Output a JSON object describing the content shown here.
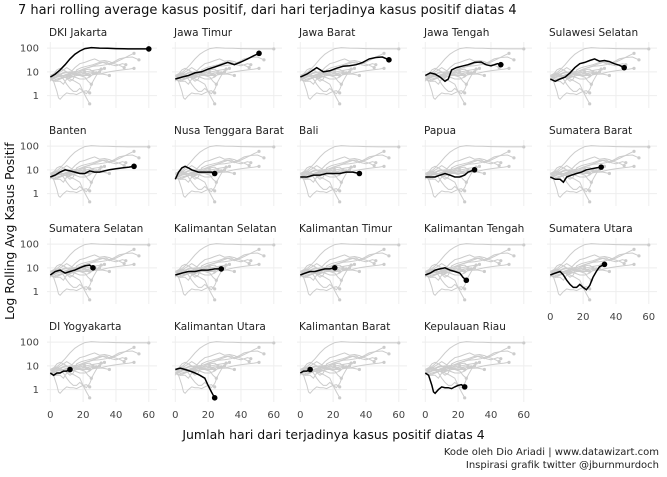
{
  "title": "7 hari rolling average kasus positif, dari hari terjadinya kasus positif diatas 4",
  "caption_line1": "Kode oleh Dio Ariadi | www.datawizart.com",
  "caption_line2": "Inspirasi grafik twitter @jburnmurdoch",
  "chart_data": {
    "type": "line",
    "xlabel": "Jumlah hari dari terjadinya kasus positif diatas 4",
    "ylabel": "Log Rolling Avg Kasus Positif",
    "y_scale": "log10",
    "xlim": [
      -2,
      65
    ],
    "ylim": [
      0.3,
      180
    ],
    "x_ticks": [
      0,
      20,
      40,
      60
    ],
    "y_ticks": [
      1,
      10,
      100
    ],
    "y_tick_labels": [
      "1",
      "10",
      "100"
    ],
    "grid": true,
    "highlight_color": "#000000",
    "background_color": "#cccccc",
    "series": [
      {
        "name": "DKI Jakarta",
        "points": [
          [
            0,
            6
          ],
          [
            3,
            8
          ],
          [
            6,
            12
          ],
          [
            9,
            20
          ],
          [
            12,
            35
          ],
          [
            15,
            55
          ],
          [
            18,
            75
          ],
          [
            21,
            95
          ],
          [
            25,
            105
          ],
          [
            30,
            100
          ],
          [
            35,
            98
          ],
          [
            40,
            95
          ],
          [
            45,
            93
          ],
          [
            50,
            92
          ],
          [
            55,
            92
          ],
          [
            60,
            92
          ]
        ]
      },
      {
        "name": "Jawa Timur",
        "points": [
          [
            0,
            5
          ],
          [
            4,
            6
          ],
          [
            8,
            7
          ],
          [
            12,
            9
          ],
          [
            16,
            10
          ],
          [
            20,
            13
          ],
          [
            24,
            16
          ],
          [
            28,
            20
          ],
          [
            32,
            25
          ],
          [
            36,
            20
          ],
          [
            40,
            26
          ],
          [
            44,
            35
          ],
          [
            48,
            48
          ],
          [
            51,
            60
          ]
        ]
      },
      {
        "name": "Jawa Barat",
        "points": [
          [
            0,
            6
          ],
          [
            4,
            8
          ],
          [
            8,
            12
          ],
          [
            10,
            15
          ],
          [
            14,
            10
          ],
          [
            18,
            11
          ],
          [
            22,
            14
          ],
          [
            26,
            17
          ],
          [
            30,
            18
          ],
          [
            34,
            20
          ],
          [
            38,
            25
          ],
          [
            42,
            35
          ],
          [
            46,
            40
          ],
          [
            50,
            42
          ],
          [
            54,
            32
          ]
        ]
      },
      {
        "name": "Jawa Tengah",
        "points": [
          [
            0,
            7
          ],
          [
            3,
            9
          ],
          [
            6,
            8
          ],
          [
            9,
            6
          ],
          [
            12,
            4
          ],
          [
            14,
            5
          ],
          [
            16,
            12
          ],
          [
            19,
            15
          ],
          [
            22,
            17
          ],
          [
            26,
            20
          ],
          [
            30,
            25
          ],
          [
            34,
            26
          ],
          [
            37,
            20
          ],
          [
            40,
            18
          ],
          [
            44,
            22
          ],
          [
            46,
            20
          ]
        ]
      },
      {
        "name": "Sulawesi Selatan",
        "points": [
          [
            0,
            5
          ],
          [
            3,
            4
          ],
          [
            6,
            5
          ],
          [
            9,
            6
          ],
          [
            12,
            9
          ],
          [
            15,
            15
          ],
          [
            18,
            22
          ],
          [
            21,
            25
          ],
          [
            24,
            30
          ],
          [
            27,
            35
          ],
          [
            30,
            28
          ],
          [
            33,
            30
          ],
          [
            36,
            27
          ],
          [
            39,
            22
          ],
          [
            42,
            19
          ],
          [
            45,
            15
          ]
        ]
      },
      {
        "name": "Banten",
        "points": [
          [
            0,
            5
          ],
          [
            3,
            6
          ],
          [
            6,
            8
          ],
          [
            9,
            10
          ],
          [
            12,
            9
          ],
          [
            15,
            8
          ],
          [
            18,
            7
          ],
          [
            21,
            7
          ],
          [
            24,
            9
          ],
          [
            27,
            8
          ],
          [
            30,
            8
          ],
          [
            33,
            9
          ],
          [
            36,
            10
          ],
          [
            40,
            11
          ],
          [
            44,
            12
          ],
          [
            48,
            13
          ],
          [
            51,
            14
          ]
        ]
      },
      {
        "name": "Nusa Tenggara Barat",
        "points": [
          [
            0,
            4
          ],
          [
            2,
            8
          ],
          [
            4,
            12
          ],
          [
            6,
            14
          ],
          [
            8,
            12
          ],
          [
            10,
            10
          ],
          [
            12,
            9
          ],
          [
            14,
            8
          ],
          [
            16,
            8
          ],
          [
            18,
            8
          ],
          [
            20,
            8
          ],
          [
            22,
            8
          ],
          [
            24,
            7
          ]
        ]
      },
      {
        "name": "Bali",
        "points": [
          [
            0,
            5
          ],
          [
            4,
            5
          ],
          [
            8,
            6
          ],
          [
            12,
            6
          ],
          [
            16,
            7
          ],
          [
            20,
            7
          ],
          [
            24,
            7
          ],
          [
            28,
            8
          ],
          [
            32,
            8
          ],
          [
            36,
            7
          ]
        ]
      },
      {
        "name": "Papua",
        "points": [
          [
            0,
            5
          ],
          [
            3,
            5
          ],
          [
            6,
            5
          ],
          [
            9,
            6
          ],
          [
            12,
            7
          ],
          [
            15,
            6
          ],
          [
            18,
            5
          ],
          [
            21,
            5
          ],
          [
            24,
            6
          ],
          [
            26,
            8
          ],
          [
            28,
            9
          ],
          [
            30,
            10
          ]
        ]
      },
      {
        "name": "Sumatera Barat",
        "points": [
          [
            0,
            5
          ],
          [
            3,
            4
          ],
          [
            6,
            4
          ],
          [
            8,
            3
          ],
          [
            10,
            5
          ],
          [
            13,
            6
          ],
          [
            16,
            7
          ],
          [
            19,
            8
          ],
          [
            22,
            10
          ],
          [
            25,
            11
          ],
          [
            28,
            12
          ],
          [
            31,
            13
          ]
        ]
      },
      {
        "name": "Sumatera Selatan",
        "points": [
          [
            0,
            5
          ],
          [
            3,
            7
          ],
          [
            6,
            8
          ],
          [
            9,
            6
          ],
          [
            12,
            7
          ],
          [
            15,
            8
          ],
          [
            18,
            10
          ],
          [
            21,
            12
          ],
          [
            24,
            13
          ],
          [
            26,
            10
          ]
        ]
      },
      {
        "name": "Kalimantan Selatan",
        "points": [
          [
            0,
            5
          ],
          [
            4,
            6
          ],
          [
            8,
            7
          ],
          [
            12,
            7
          ],
          [
            16,
            8
          ],
          [
            20,
            8
          ],
          [
            24,
            9
          ],
          [
            28,
            9
          ]
        ]
      },
      {
        "name": "Kalimantan Timur",
        "points": [
          [
            0,
            5
          ],
          [
            3,
            6
          ],
          [
            6,
            7
          ],
          [
            9,
            7
          ],
          [
            12,
            8
          ],
          [
            15,
            9
          ],
          [
            18,
            9
          ],
          [
            21,
            10
          ]
        ]
      },
      {
        "name": "Kalimantan Tengah",
        "points": [
          [
            0,
            5
          ],
          [
            3,
            6
          ],
          [
            6,
            8
          ],
          [
            9,
            9
          ],
          [
            12,
            10
          ],
          [
            15,
            8
          ],
          [
            18,
            7
          ],
          [
            21,
            6
          ],
          [
            23,
            4
          ],
          [
            25,
            3
          ]
        ]
      },
      {
        "name": "Sumatera Utara",
        "points": [
          [
            0,
            5
          ],
          [
            3,
            6
          ],
          [
            6,
            7
          ],
          [
            8,
            5
          ],
          [
            10,
            3
          ],
          [
            12,
            2
          ],
          [
            14,
            1.5
          ],
          [
            16,
            1.5
          ],
          [
            18,
            2
          ],
          [
            20,
            1.5
          ],
          [
            22,
            1.2
          ],
          [
            24,
            1.8
          ],
          [
            26,
            4
          ],
          [
            28,
            7
          ],
          [
            30,
            11
          ],
          [
            33,
            14
          ]
        ]
      },
      {
        "name": "DI Yogyakarta",
        "points": [
          [
            0,
            5
          ],
          [
            2,
            4
          ],
          [
            4,
            5
          ],
          [
            6,
            5
          ],
          [
            8,
            6
          ],
          [
            10,
            6
          ],
          [
            12,
            7
          ]
        ]
      },
      {
        "name": "Kalimantan Utara",
        "points": [
          [
            0,
            7
          ],
          [
            3,
            8
          ],
          [
            6,
            7
          ],
          [
            9,
            6
          ],
          [
            12,
            5
          ],
          [
            15,
            4
          ],
          [
            18,
            3
          ],
          [
            20,
            1.5
          ],
          [
            22,
            0.8
          ],
          [
            23,
            0.6
          ],
          [
            24,
            0.45
          ]
        ]
      },
      {
        "name": "Kalimantan Barat",
        "points": [
          [
            0,
            5
          ],
          [
            2,
            6
          ],
          [
            4,
            6
          ],
          [
            6,
            7
          ]
        ]
      },
      {
        "name": "Kepulauan Riau",
        "points": [
          [
            0,
            5
          ],
          [
            2,
            4
          ],
          [
            4,
            1.5
          ],
          [
            5,
            0.8
          ],
          [
            6,
            0.7
          ],
          [
            8,
            1
          ],
          [
            10,
            1.3
          ],
          [
            12,
            1.2
          ],
          [
            14,
            1.2
          ],
          [
            16,
            1.1
          ],
          [
            18,
            1.3
          ],
          [
            20,
            1.5
          ],
          [
            22,
            1.6
          ],
          [
            24,
            1.3
          ]
        ]
      }
    ]
  }
}
